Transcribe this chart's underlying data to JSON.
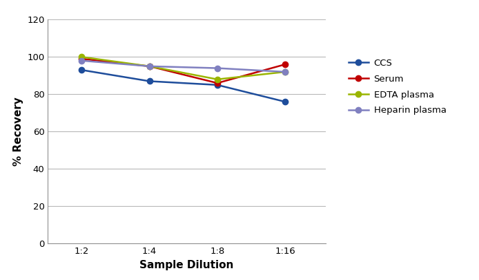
{
  "x_labels": [
    "1:2",
    "1:4",
    "1:8",
    "1:16"
  ],
  "x_values": [
    1,
    2,
    3,
    4
  ],
  "series": [
    {
      "name": "CCS",
      "color": "#1e4d9b",
      "marker": "o",
      "values": [
        93,
        87,
        85,
        76
      ]
    },
    {
      "name": "Serum",
      "color": "#c00000",
      "marker": "o",
      "values": [
        99,
        95,
        86,
        96
      ]
    },
    {
      "name": "EDTA plasma",
      "color": "#9ab500",
      "marker": "o",
      "values": [
        100,
        95,
        88,
        92
      ]
    },
    {
      "name": "Heparin plasma",
      "color": "#8080c0",
      "marker": "o",
      "values": [
        98,
        95,
        94,
        92
      ]
    }
  ],
  "ylabel": "% Recovery",
  "xlabel": "Sample Dilution",
  "ylim": [
    0,
    120
  ],
  "yticks": [
    0,
    20,
    40,
    60,
    80,
    100,
    120
  ],
  "background_color": "#ffffff",
  "grid_color": "#b8b8b8",
  "figwidth": 6.94,
  "figheight": 4.05,
  "dpi": 100
}
